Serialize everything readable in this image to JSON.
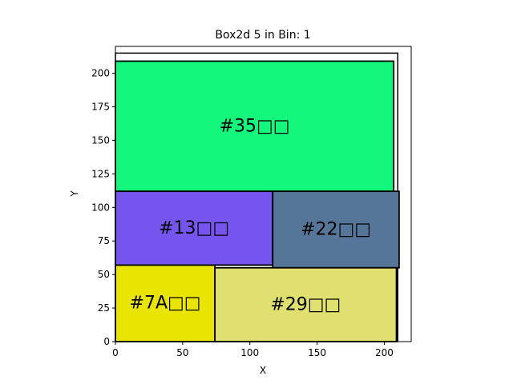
{
  "chart_data": {
    "type": "rectangles",
    "title": "Box2d 5 in Bin: 1",
    "xlabel": "X",
    "ylabel": "Y",
    "xlim": [
      0,
      220
    ],
    "ylim": [
      0,
      220
    ],
    "xticks": [
      0,
      50,
      100,
      150,
      200
    ],
    "yticks": [
      0,
      25,
      50,
      75,
      100,
      125,
      150,
      175,
      200
    ],
    "bin": {
      "x0": 0,
      "y0": 0,
      "x1": 210,
      "y1": 215
    },
    "boxes": [
      {
        "label": "#35□□",
        "x0": 0,
        "y0": 112,
        "x1": 207,
        "y1": 209,
        "color": "#14f77d"
      },
      {
        "label": "#13□□",
        "x0": 0,
        "y0": 57,
        "x1": 117,
        "y1": 112,
        "color": "#7555ee"
      },
      {
        "label": "#22□□",
        "x0": 117,
        "y0": 55,
        "x1": 211,
        "y1": 112,
        "color": "#567699"
      },
      {
        "label": "#7A□□",
        "x0": 0,
        "y0": 0,
        "x1": 74,
        "y1": 57,
        "color": "#eae402"
      },
      {
        "label": "#29□□",
        "x0": 74,
        "y0": 0,
        "x1": 209,
        "y1": 55,
        "color": "#e0e070"
      }
    ]
  }
}
